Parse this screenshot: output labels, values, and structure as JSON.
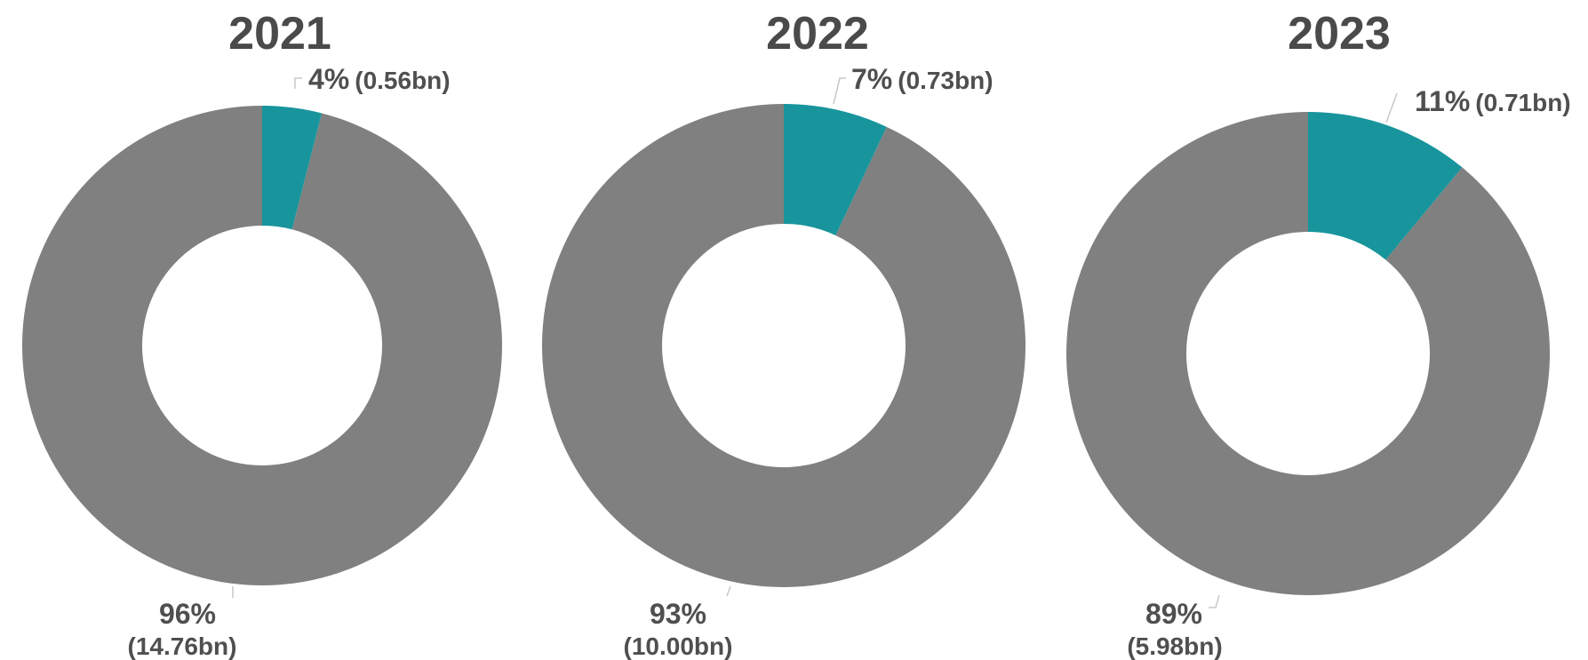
{
  "colors": {
    "primary_slice": "#808080",
    "highlight_slice": "#18959c",
    "title": "#4a4a4a",
    "label": "#4f4f4f",
    "leader": "#c8c8c8"
  },
  "chart_data": [
    {
      "type": "pie",
      "variant": "donut",
      "title": "2021",
      "slices": [
        {
          "label": "4%",
          "value": 0.56,
          "percent": 4,
          "amount_text": "(0.56bn)",
          "color": "#18959c"
        },
        {
          "label": "96%",
          "value": 14.76,
          "percent": 96,
          "amount_text": "(14.76bn)",
          "color": "#808080"
        }
      ]
    },
    {
      "type": "pie",
      "variant": "donut",
      "title": "2022",
      "slices": [
        {
          "label": "7%",
          "value": 0.73,
          "percent": 7,
          "amount_text": "(0.73bn)",
          "color": "#18959c"
        },
        {
          "label": "93%",
          "value": 10.0,
          "percent": 93,
          "amount_text": "(10.00bn)",
          "color": "#808080"
        }
      ]
    },
    {
      "type": "pie",
      "variant": "donut",
      "title": "2023",
      "slices": [
        {
          "label": "11%",
          "value": 0.71,
          "percent": 11,
          "amount_text": "(0.71bn)",
          "color": "#18959c"
        },
        {
          "label": "89%",
          "value": 5.98,
          "percent": 89,
          "amount_text": "(5.98bn)",
          "color": "#808080"
        }
      ]
    }
  ]
}
